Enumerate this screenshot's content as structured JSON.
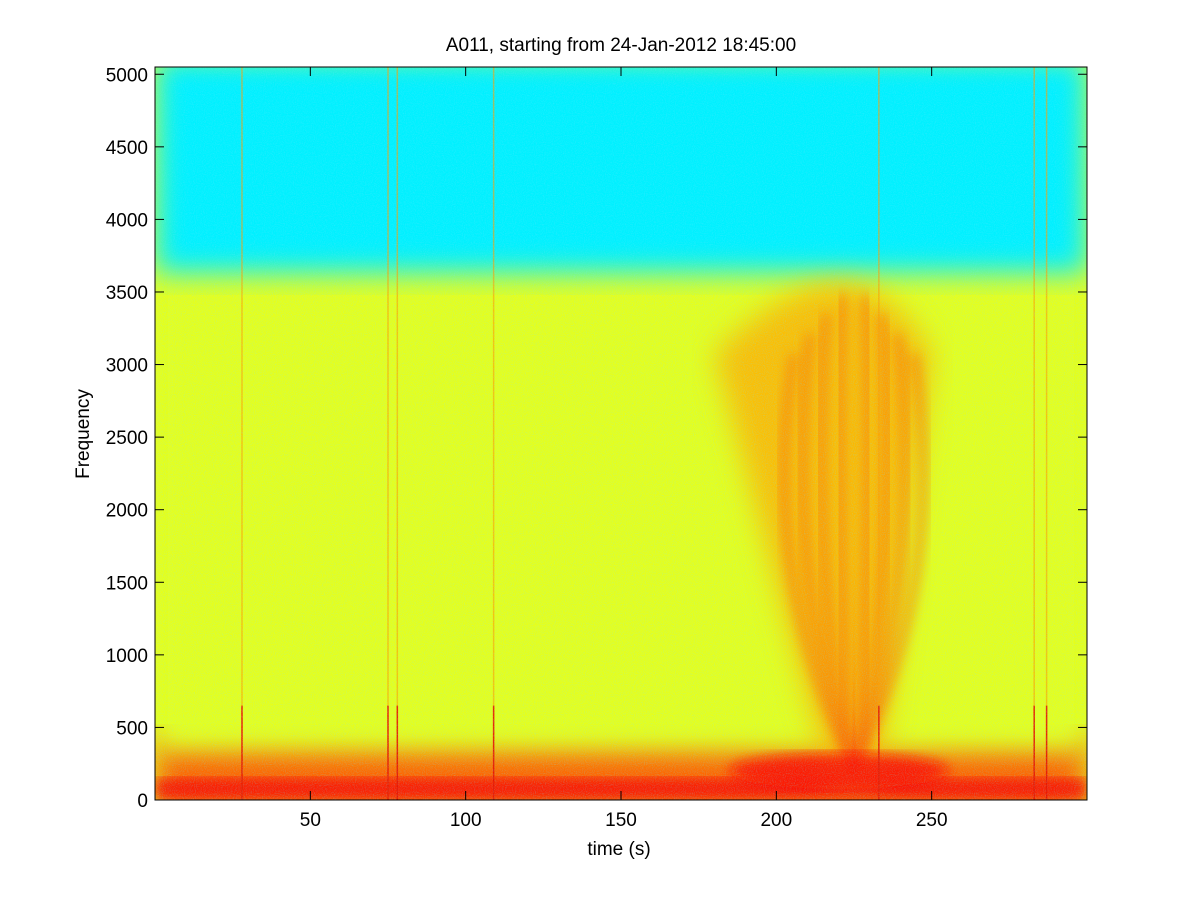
{
  "chart_data": {
    "type": "heatmap",
    "title": "A011, starting from 24-Jan-2012 18:45:00",
    "xlabel": "time (s)",
    "ylabel": "Frequency",
    "xlim": [
      0,
      300
    ],
    "ylim": [
      0,
      5050
    ],
    "x_ticks": [
      50,
      100,
      150,
      200,
      250
    ],
    "y_ticks": [
      0,
      500,
      1000,
      1500,
      2000,
      2500,
      3000,
      3500,
      4000,
      4500,
      5000
    ],
    "colormap": "jet",
    "grid": false,
    "legend": "none",
    "features": {
      "background_levels": [
        {
          "freq_range": [
            0,
            400
          ],
          "level": 0.78
        },
        {
          "freq_range": [
            400,
            3700
          ],
          "level": 0.6
        },
        {
          "freq_range": [
            3700,
            5050
          ],
          "level": 0.36
        }
      ],
      "upsweep_event": {
        "time_range": [
          180,
          250
        ],
        "freq_range": [
          150,
          3900
        ],
        "peak_time": 225,
        "peak_level": 0.8
      },
      "broadband_spikes": [
        28,
        75,
        78,
        109,
        233,
        283,
        287
      ],
      "low_freq_band": [
        0,
        150
      ]
    }
  }
}
